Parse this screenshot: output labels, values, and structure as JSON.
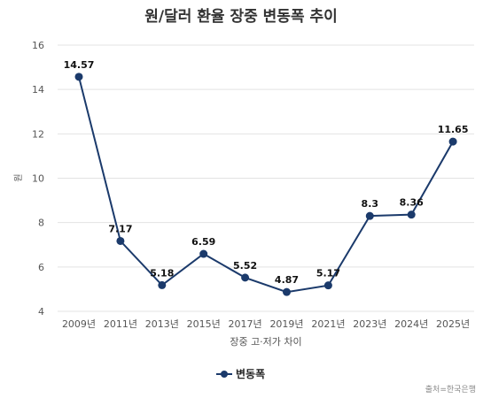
{
  "chart_data": {
    "type": "line",
    "title": "원/달러 환율 장중 변동폭 추이",
    "xlabel": "장중 고·저가 차이",
    "ylabel": "원",
    "categories": [
      "2009년",
      "2011년",
      "2013년",
      "2015년",
      "2017년",
      "2019년",
      "2021년",
      "2023년",
      "2024년",
      "2025년"
    ],
    "series": [
      {
        "name": "변동폭",
        "values": [
          14.57,
          7.17,
          5.18,
          6.59,
          5.52,
          4.87,
          5.17,
          8.3,
          8.36,
          11.65
        ],
        "labels": [
          "14.57",
          "7.17",
          "5.18",
          "6.59",
          "5.52",
          "4.87",
          "5.17",
          "8.3",
          "8.36",
          "11.65"
        ]
      }
    ],
    "ylim": [
      4,
      16
    ],
    "yticks": [
      4,
      6,
      8,
      10,
      12,
      14,
      16
    ],
    "grid": true,
    "legend_position": "bottom",
    "source": "출처=한국은행",
    "colors": {
      "series": "#1b3a6b",
      "grid": "#e3e3e3",
      "text": "#555555",
      "title": "#333333",
      "label": "#111111"
    }
  }
}
